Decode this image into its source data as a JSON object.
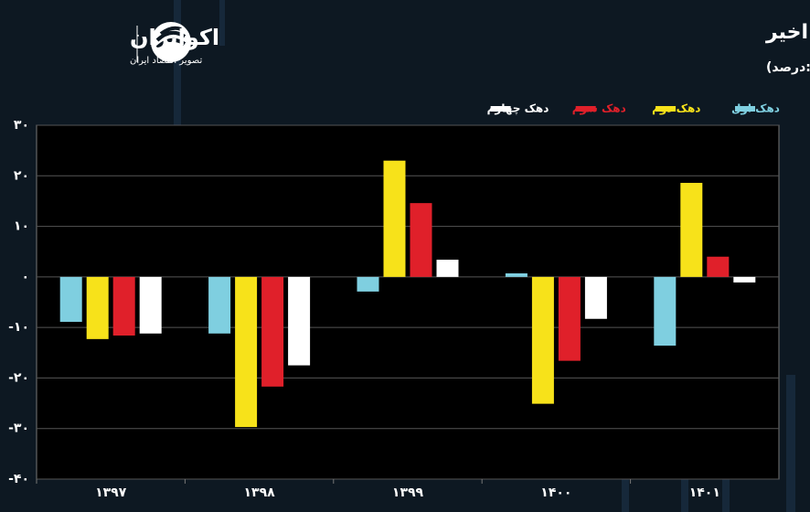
{
  "logo": {
    "name": "اکوایران",
    "tagline": "تصویر اقتصاد ایران"
  },
  "chart_data": {
    "type": "bar",
    "title": "تغییرات مصرف چهار دهک نخست در سال های اخیر",
    "subtitle": "(واحد:درصد)",
    "categories": [
      "۱۳۹۷",
      "۱۳۹۸",
      "۱۳۹۹",
      "۱۴۰۰",
      "۱۴۰۱"
    ],
    "series": [
      {
        "name": "دهک اول",
        "color": "#7fcfe0",
        "values": [
          -8.9,
          -11.2,
          -2.9,
          0.7,
          -13.6
        ]
      },
      {
        "name": "دهک دوم",
        "color": "#f7e21a",
        "values": [
          -12.3,
          -29.7,
          23,
          -25.1,
          18.6
        ]
      },
      {
        "name": "دهک سوم",
        "color": "#e0202a",
        "values": [
          -11.6,
          -21.7,
          14.6,
          -16.6,
          4
        ]
      },
      {
        "name": "دهک چهارم",
        "color": "#ffffff",
        "values": [
          -11.2,
          -17.5,
          3.4,
          -8.3,
          -1.1
        ]
      }
    ],
    "ylim": [
      -40,
      30
    ],
    "yticks": [
      {
        "value": -40,
        "label": "-۴۰"
      },
      {
        "value": -30,
        "label": "-۳۰"
      },
      {
        "value": -20,
        "label": "-۲۰"
      },
      {
        "value": -10,
        "label": "-۱۰"
      },
      {
        "value": 0,
        "label": "۰"
      },
      {
        "value": 10,
        "label": "۱۰"
      },
      {
        "value": 20,
        "label": "۲۰"
      },
      {
        "value": 30,
        "label": "۳۰"
      }
    ],
    "grid": true
  }
}
